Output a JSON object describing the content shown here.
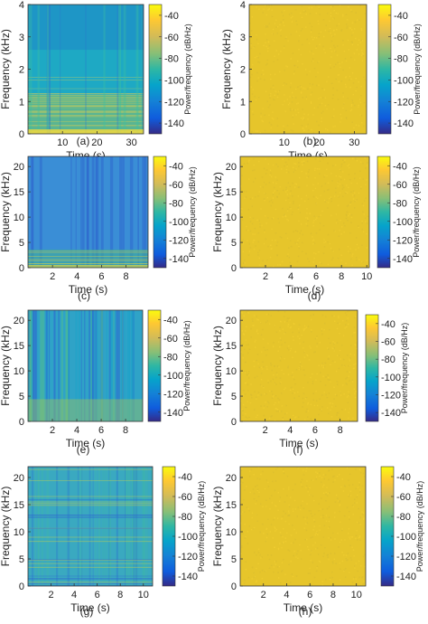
{
  "chart_data": [
    {
      "type": "heatmap",
      "panel_label": "(a)",
      "xlabel": "Time (s)",
      "ylabel": "Frequency (kHz)",
      "xlim": [
        0,
        33.5
      ],
      "ylim": [
        0,
        4
      ],
      "xticks": [
        10,
        20,
        30
      ],
      "yticks": [
        0,
        1,
        2,
        3,
        4
      ],
      "colorbar": {
        "label": "Power/frequency (dB/Hz)",
        "range": [
          -150,
          -30
        ],
        "ticks": [
          -40,
          -60,
          -80,
          -100,
          -120,
          -140
        ]
      },
      "content": "speech",
      "dominant_color": "#1ea9c4"
    },
    {
      "type": "heatmap",
      "panel_label": "(b)",
      "xlabel": "Time (s)",
      "ylabel": "Frequency (kHz)",
      "xlim": [
        0,
        33.5
      ],
      "ylim": [
        0,
        4
      ],
      "xticks": [
        10,
        20,
        30
      ],
      "yticks": [
        0,
        1,
        2,
        3,
        4
      ],
      "colorbar": {
        "label": "Power/frequency (dB/Hz)",
        "range": [
          -150,
          -30
        ],
        "ticks": [
          -40,
          -60,
          -80,
          -100,
          -120,
          -140
        ]
      },
      "content": "uniform",
      "dominant_color": "#e6c52b"
    },
    {
      "type": "heatmap",
      "panel_label": "(c)",
      "xlabel": "Time (s)",
      "ylabel": "Frequency (kHz)",
      "xlim": [
        0,
        9.8
      ],
      "ylim": [
        0,
        22
      ],
      "xticks": [
        2,
        4,
        6,
        8
      ],
      "yticks": [
        0,
        5,
        10,
        15,
        20
      ],
      "colorbar": {
        "label": "Power/frequency (dB/Hz)",
        "range": [
          -150,
          -30
        ],
        "ticks": [
          -40,
          -60,
          -80,
          -100,
          -120,
          -140
        ]
      },
      "content": "lowband",
      "dominant_color": "#3a8ed6"
    },
    {
      "type": "heatmap",
      "panel_label": "(d)",
      "xlabel": "Time (s)",
      "ylabel": "Frequency (kHz)",
      "xlim": [
        0,
        10.2
      ],
      "ylim": [
        0,
        22
      ],
      "xticks": [
        2,
        4,
        6,
        8,
        10
      ],
      "yticks": [
        0,
        5,
        10,
        15,
        20
      ],
      "colorbar": {
        "label": "Power/frequency (dB/Hz)",
        "range": [
          -150,
          -30
        ],
        "ticks": [
          -40,
          -60,
          -80,
          -100,
          -120,
          -140
        ]
      },
      "content": "uniform",
      "dominant_color": "#e6c52b"
    },
    {
      "type": "heatmap",
      "panel_label": "(e)",
      "xlabel": "Time (s)",
      "ylabel": "Frequency (kHz)",
      "xlim": [
        0,
        9.4
      ],
      "ylim": [
        0,
        22
      ],
      "xticks": [
        2,
        4,
        6,
        8
      ],
      "yticks": [
        0,
        5,
        10,
        15,
        20
      ],
      "colorbar": {
        "label": "Power/frequency (dB/Hz)",
        "range": [
          -150,
          -30
        ],
        "ticks": [
          -40,
          -60,
          -80,
          -100,
          -120,
          -140
        ]
      },
      "content": "vertical",
      "dominant_color": "#2fa3c7"
    },
    {
      "type": "heatmap",
      "panel_label": "(f)",
      "xlabel": "Time (s)",
      "ylabel": "Frequency (kHz)",
      "xlim": [
        0,
        9.4
      ],
      "ylim": [
        0,
        22
      ],
      "xticks": [
        2,
        4,
        6,
        8
      ],
      "yticks": [
        0,
        5,
        10,
        15,
        20
      ],
      "colorbar": {
        "label": "Power/frequency (dB/Hz)",
        "range": [
          -150,
          -30
        ],
        "ticks": [
          -40,
          -60,
          -80,
          -100,
          -120,
          -140
        ]
      },
      "content": "uniform",
      "dominant_color": "#e6c52b"
    },
    {
      "type": "heatmap",
      "panel_label": "(g)",
      "xlabel": "Time (s)",
      "ylabel": "Frequency (kHz)",
      "xlim": [
        0,
        10.8
      ],
      "ylim": [
        0,
        22
      ],
      "xticks": [
        2,
        4,
        6,
        8,
        10
      ],
      "yticks": [
        0,
        5,
        10,
        15,
        20
      ],
      "colorbar": {
        "label": "Power/frequency (dB/Hz)",
        "range": [
          -150,
          -30
        ],
        "ticks": [
          -40,
          -60,
          -80,
          -100,
          -120,
          -140
        ]
      },
      "content": "music",
      "dominant_color": "#3aa9c0"
    },
    {
      "type": "heatmap",
      "panel_label": "(h)",
      "xlabel": "Time (s)",
      "ylabel": "Frequency (kHz)",
      "xlim": [
        0,
        10.8
      ],
      "ylim": [
        0,
        22
      ],
      "xticks": [
        2,
        4,
        6,
        8,
        10
      ],
      "yticks": [
        0,
        5,
        10,
        15,
        20
      ],
      "colorbar": {
        "label": "Power/frequency (dB/Hz)",
        "range": [
          -150,
          -30
        ],
        "ticks": [
          -40,
          -60,
          -80,
          -100,
          -120,
          -140
        ]
      },
      "content": "uniform",
      "dominant_color": "#e6c52b"
    }
  ]
}
